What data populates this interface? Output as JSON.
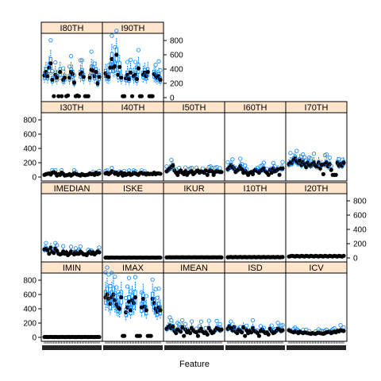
{
  "chart_data": {
    "type": "box",
    "title": "",
    "xlabel": "Feature",
    "ylabel": "",
    "ylim": [
      0,
      800
    ],
    "yticks": [
      0,
      200,
      400,
      600,
      800
    ],
    "x_ticklabels_note": "",
    "layout": "trellis 5 columns x 4 rows",
    "panels": [
      {
        "name": "I80TH",
        "row": 0,
        "col": 0,
        "level": "high",
        "values": [
          310,
          360,
          300,
          420,
          480,
          250,
          20,
          320,
          280,
          20,
          360,
          20,
          250,
          280,
          20,
          30,
          280,
          360,
          330,
          210,
          20,
          30,
          20,
          330,
          350,
          290,
          20,
          20,
          20,
          280,
          390,
          380,
          300,
          360,
          200,
          290
        ]
      },
      {
        "name": "I90TH",
        "row": 0,
        "col": 1,
        "level": "high",
        "values": [
          340,
          300,
          290,
          420,
          540,
          420,
          440,
          600,
          320,
          430,
          280,
          20,
          20,
          270,
          320,
          260,
          350,
          20,
          300,
          320,
          260,
          410,
          20,
          20,
          320,
          350,
          300,
          360,
          20,
          20,
          20,
          330,
          310,
          280,
          300,
          250
        ]
      },
      {
        "name": "I30TH",
        "row": 1,
        "col": 0,
        "level": "low",
        "values": [
          30,
          40,
          45,
          50,
          35,
          60,
          70,
          55,
          20,
          40,
          30,
          60,
          45,
          20,
          25,
          30,
          40,
          20,
          35,
          55,
          45,
          35,
          30,
          20,
          40,
          30,
          25,
          30,
          35,
          50,
          40,
          45,
          30,
          60,
          40,
          50
        ]
      },
      {
        "name": "I40TH",
        "row": 1,
        "col": 1,
        "level": "low",
        "values": [
          50,
          60,
          40,
          55,
          80,
          70,
          45,
          60,
          30,
          50,
          65,
          20,
          50,
          30,
          40,
          55,
          30,
          40,
          60,
          50,
          40,
          30,
          55,
          60,
          45,
          50,
          35,
          50,
          40,
          45,
          40,
          60,
          40,
          50,
          50,
          45
        ]
      },
      {
        "name": "I50TH",
        "row": 1,
        "col": 2,
        "level": "mid",
        "values": [
          80,
          100,
          120,
          140,
          160,
          90,
          60,
          30,
          70,
          90,
          60,
          40,
          80,
          30,
          60,
          70,
          80,
          40,
          60,
          80,
          90,
          60,
          80,
          70,
          60,
          90,
          30,
          80,
          90,
          80,
          30,
          70,
          80,
          80,
          70,
          70
        ]
      },
      {
        "name": "I60TH",
        "row": 1,
        "col": 3,
        "level": "mid",
        "values": [
          110,
          130,
          160,
          140,
          120,
          70,
          90,
          110,
          150,
          110,
          60,
          90,
          60,
          30,
          60,
          70,
          40,
          90,
          100,
          80,
          60,
          90,
          100,
          120,
          80,
          60,
          30,
          100,
          60,
          120,
          80,
          90,
          110,
          30,
          120,
          120
        ]
      },
      {
        "name": "I70TH",
        "row": 1,
        "col": 4,
        "level": "high",
        "values": [
          180,
          200,
          200,
          240,
          260,
          220,
          200,
          230,
          170,
          210,
          180,
          140,
          200,
          170,
          160,
          180,
          200,
          160,
          150,
          200,
          120,
          170,
          40,
          180,
          200,
          150,
          180,
          100,
          30,
          30,
          30,
          200,
          160,
          180,
          160,
          200
        ]
      },
      {
        "name": "IMEDIAN",
        "row": 2,
        "col": 0,
        "level": "mid",
        "values": [
          120,
          130,
          110,
          60,
          140,
          90,
          70,
          130,
          100,
          60,
          50,
          60,
          90,
          60,
          80,
          40,
          60,
          90,
          70,
          50,
          80,
          60,
          60,
          90,
          70,
          50,
          50,
          40,
          70,
          90,
          60,
          80,
          50,
          70,
          90,
          80
        ]
      },
      {
        "name": "ISKE",
        "row": 2,
        "col": 1,
        "level": "flat",
        "values": [
          5,
          6,
          4,
          5,
          6,
          5,
          4,
          6,
          5,
          4,
          5,
          6,
          5,
          4,
          5,
          6,
          4,
          5,
          6,
          5,
          4,
          5,
          6,
          5,
          4,
          5,
          6,
          5,
          4,
          5,
          6,
          5,
          4,
          5,
          6,
          5
        ]
      },
      {
        "name": "IKUR",
        "row": 2,
        "col": 2,
        "level": "flat",
        "values": [
          8,
          9,
          10,
          8,
          9,
          8,
          10,
          9,
          8,
          9,
          10,
          8,
          9,
          8,
          10,
          9,
          8,
          9,
          10,
          8,
          9,
          8,
          10,
          9,
          8,
          9,
          10,
          8,
          9,
          8,
          10,
          9,
          8,
          9,
          10,
          8
        ]
      },
      {
        "name": "I10TH",
        "row": 2,
        "col": 3,
        "level": "flat",
        "values": [
          10,
          12,
          14,
          10,
          12,
          14,
          10,
          12,
          14,
          10,
          12,
          14,
          10,
          12,
          14,
          10,
          12,
          14,
          10,
          12,
          14,
          10,
          12,
          14,
          10,
          12,
          14,
          10,
          12,
          14,
          10,
          12,
          14,
          10,
          12,
          14
        ]
      },
      {
        "name": "I20TH",
        "row": 2,
        "col": 4,
        "level": "flat",
        "values": [
          20,
          25,
          30,
          25,
          20,
          30,
          25,
          20,
          30,
          25,
          20,
          30,
          25,
          20,
          30,
          25,
          20,
          30,
          25,
          20,
          30,
          25,
          20,
          30,
          25,
          20,
          30,
          25,
          20,
          30,
          25,
          20,
          30,
          25,
          20,
          30
        ]
      },
      {
        "name": "IMIN",
        "row": 3,
        "col": 0,
        "level": "flat",
        "values": [
          5,
          6,
          4,
          5,
          6,
          5,
          4,
          6,
          5,
          4,
          5,
          6,
          5,
          4,
          5,
          6,
          4,
          5,
          6,
          5,
          4,
          5,
          6,
          5,
          4,
          5,
          6,
          5,
          4,
          5,
          6,
          5,
          4,
          5,
          6,
          5
        ]
      },
      {
        "name": "IMAX",
        "row": 3,
        "col": 1,
        "level": "high",
        "values": [
          560,
          600,
          540,
          470,
          560,
          600,
          520,
          460,
          420,
          400,
          560,
          20,
          20,
          350,
          420,
          500,
          380,
          520,
          480,
          560,
          20,
          20,
          20,
          420,
          540,
          430,
          380,
          20,
          20,
          20,
          540,
          480,
          400,
          360,
          420,
          380
        ]
      },
      {
        "name": "IMEAN",
        "row": 3,
        "col": 2,
        "level": "mid",
        "values": [
          120,
          140,
          160,
          130,
          150,
          90,
          60,
          110,
          100,
          80,
          140,
          20,
          110,
          70,
          90,
          60,
          130,
          100,
          80,
          70,
          20,
          90,
          120,
          80,
          60,
          70,
          40,
          130,
          90,
          60,
          70,
          100,
          130,
          120,
          100,
          110
        ]
      },
      {
        "name": "ISD",
        "row": 3,
        "col": 3,
        "level": "mid",
        "values": [
          120,
          150,
          130,
          100,
          140,
          80,
          60,
          110,
          90,
          70,
          140,
          20,
          100,
          60,
          90,
          70,
          130,
          90,
          80,
          60,
          20,
          90,
          110,
          80,
          60,
          70,
          40,
          120,
          90,
          60,
          70,
          90,
          120,
          110,
          90,
          100
        ]
      },
      {
        "name": "ICV",
        "row": 3,
        "col": 4,
        "level": "low",
        "values": [
          100,
          90,
          80,
          70,
          85,
          75,
          60,
          80,
          70,
          60,
          70,
          65,
          60,
          55,
          50,
          60,
          55,
          50,
          60,
          65,
          60,
          55,
          50,
          60,
          70,
          75,
          80,
          60,
          70,
          80,
          70,
          90,
          85,
          100,
          95,
          90
        ]
      }
    ]
  }
}
